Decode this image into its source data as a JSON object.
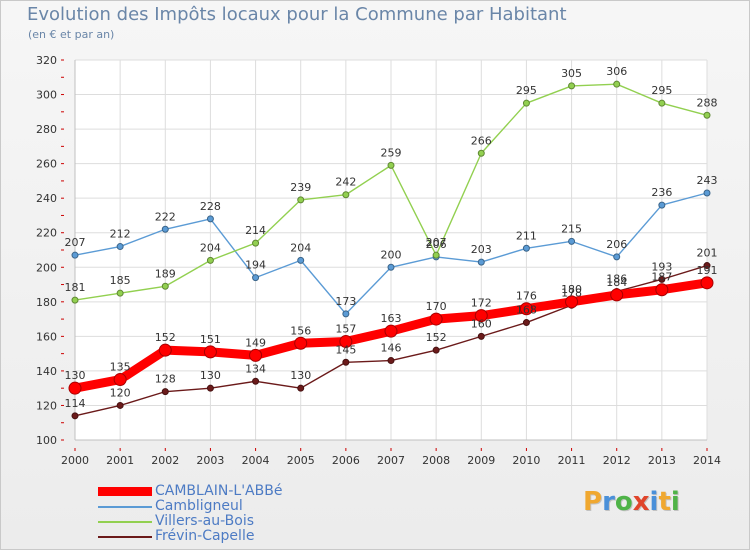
{
  "title": "Evolution des Impôts locaux pour la Commune par Habitant",
  "subtitle": "(en € et par an)",
  "logo": {
    "letters": [
      "P",
      "r",
      "o",
      "x",
      "i",
      "t",
      "i"
    ],
    "colors": [
      "#f0a830",
      "#4a90d9",
      "#4fb348",
      "#e0452b",
      "#4a90d9",
      "#f0a830",
      "#4fb348"
    ]
  },
  "chart_data": {
    "type": "line",
    "x": [
      "2000",
      "2001",
      "2002",
      "2003",
      "2004",
      "2005",
      "2006",
      "2007",
      "2008",
      "2009",
      "2010",
      "2011",
      "2012",
      "2013",
      "2014"
    ],
    "ylim": [
      100,
      320
    ],
    "yticks": [
      100,
      120,
      140,
      160,
      180,
      200,
      220,
      240,
      260,
      280,
      300,
      320
    ],
    "grid": true,
    "legend_position": "bottom-left",
    "series": [
      {
        "name": "CAMBLAIN-L'ABBé",
        "color": "#ff0000",
        "emphasis": true,
        "values": [
          130,
          135,
          152,
          151,
          149,
          156,
          157,
          163,
          170,
          172,
          176,
          180,
          184,
          187,
          191
        ]
      },
      {
        "name": "Cambligneul",
        "color": "#5b9bd5",
        "values": [
          207,
          212,
          222,
          228,
          194,
          204,
          173,
          200,
          206,
          203,
          211,
          215,
          206,
          236,
          243
        ]
      },
      {
        "name": "Villers-au-Bois",
        "color": "#92d050",
        "values": [
          181,
          185,
          189,
          204,
          214,
          239,
          242,
          259,
          207,
          266,
          295,
          305,
          306,
          295,
          288
        ]
      },
      {
        "name": "Frévin-Capelle",
        "color": "#6b1a1a",
        "values": [
          114,
          120,
          128,
          130,
          134,
          130,
          145,
          146,
          152,
          160,
          168,
          178,
          186,
          193,
          201
        ]
      }
    ]
  }
}
